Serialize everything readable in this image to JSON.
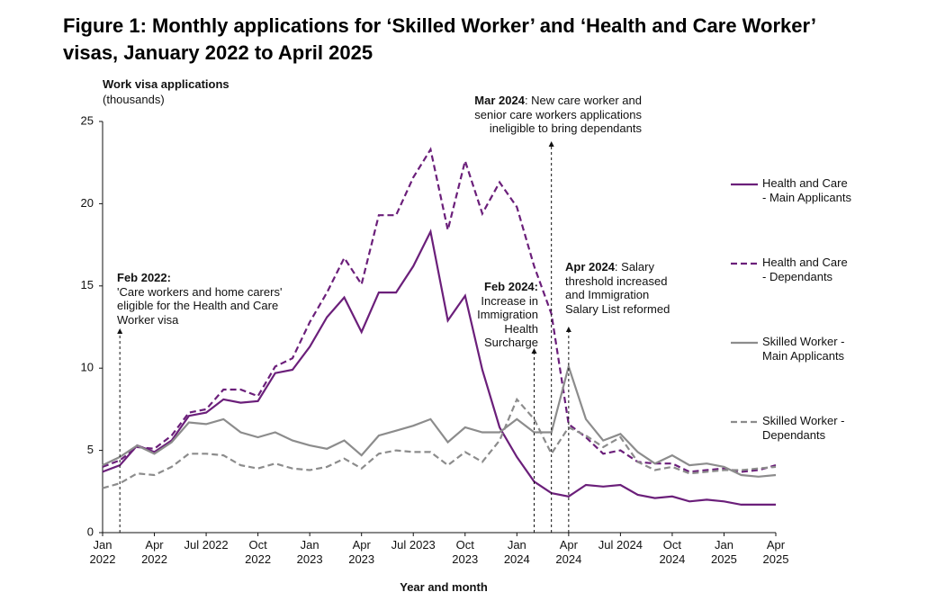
{
  "chart_data": {
    "type": "line",
    "title": "Figure 1: Monthly applications for ‘Skilled Worker’ and ‘Health and Care Worker’ visas, January 2022 to April 2025",
    "y_label": "Work visa applications",
    "y_unit": "(thousands)",
    "x_label": "Year and month",
    "categories": [
      "Jan 2022",
      null,
      null,
      "Apr 2022",
      null,
      null,
      "Jul 2022",
      null,
      null,
      "Oct 2022",
      null,
      null,
      "Jan 2023",
      null,
      null,
      "Apr 2023",
      null,
      null,
      "Jul 2023",
      null,
      null,
      "Oct 2023",
      null,
      null,
      "Jan 2024",
      null,
      null,
      "Apr 2024",
      null,
      null,
      "Jul 2024",
      null,
      null,
      "Oct 2024",
      null,
      null,
      "Jan 2025",
      null,
      null,
      "Apr 2025"
    ],
    "ylim": [
      0,
      25
    ],
    "yticks": [
      0,
      5,
      10,
      15,
      20,
      25
    ],
    "legend": "right",
    "series": [
      {
        "name": "Health and Care - Main Applicants",
        "color": "#6b1f7a",
        "dashed": false,
        "values": [
          3.7,
          4.1,
          5.3,
          4.9,
          5.6,
          7.1,
          7.3,
          8.1,
          7.9,
          8.0,
          9.7,
          9.9,
          11.3,
          13.1,
          14.3,
          12.2,
          14.6,
          14.6,
          16.2,
          18.3,
          12.9,
          14.4,
          9.9,
          6.4,
          4.6,
          3.1,
          2.4,
          2.2,
          2.9,
          2.8,
          2.9,
          2.3,
          2.1,
          2.2,
          1.9,
          2.0,
          1.9,
          1.7,
          1.7,
          1.7
        ]
      },
      {
        "name": "Health and Care - Dependants",
        "color": "#6b1f7a",
        "dashed": true,
        "values": [
          4.0,
          4.4,
          5.2,
          5.1,
          5.9,
          7.3,
          7.5,
          8.7,
          8.7,
          8.3,
          10.1,
          10.6,
          12.8,
          14.6,
          16.7,
          15.1,
          19.3,
          19.3,
          21.6,
          23.3,
          18.4,
          22.6,
          19.4,
          21.3,
          19.8,
          16.2,
          13.3,
          6.6,
          5.8,
          4.8,
          5.0,
          4.3,
          4.2,
          4.2,
          3.7,
          3.8,
          3.9,
          3.7,
          3.8,
          4.1
        ]
      },
      {
        "name": "Skilled Worker - Main Applicants",
        "color": "#8c8c8c",
        "dashed": false,
        "values": [
          4.1,
          4.6,
          5.3,
          4.8,
          5.5,
          6.7,
          6.6,
          6.9,
          6.1,
          5.8,
          6.1,
          5.6,
          5.3,
          5.1,
          5.6,
          4.7,
          5.9,
          6.2,
          6.5,
          6.9,
          5.5,
          6.4,
          6.1,
          6.1,
          6.9,
          6.1,
          6.1,
          10.1,
          6.9,
          5.6,
          6.0,
          4.9,
          4.2,
          4.7,
          4.1,
          4.2,
          4.0,
          3.5,
          3.4,
          3.5
        ]
      },
      {
        "name": "Skilled Worker - Dependants",
        "color": "#8c8c8c",
        "dashed": true,
        "values": [
          2.7,
          3.0,
          3.6,
          3.5,
          4.0,
          4.8,
          4.8,
          4.7,
          4.1,
          3.9,
          4.2,
          3.9,
          3.8,
          4.0,
          4.5,
          3.9,
          4.8,
          5.0,
          4.9,
          4.9,
          4.1,
          4.9,
          4.3,
          5.6,
          8.1,
          6.9,
          4.8,
          6.4,
          5.9,
          5.2,
          5.8,
          4.3,
          3.8,
          4.0,
          3.6,
          3.7,
          3.8,
          3.8,
          3.9,
          4.0
        ]
      }
    ],
    "annotations": [
      {
        "bold": "Feb 2022:",
        "text": "'Care workers and home carers' eligible for the Health and Care Worker visa"
      },
      {
        "bold": "Feb 2024:",
        "text": "Increase in Immigration Health Surcharge"
      },
      {
        "bold": "Mar 2024",
        "text": ": New care worker and senior care workers applications ineligible to bring dependants"
      },
      {
        "bold": "Apr 2024",
        "text": ": Salary threshold increased and Immigration Salary List reformed"
      }
    ]
  }
}
